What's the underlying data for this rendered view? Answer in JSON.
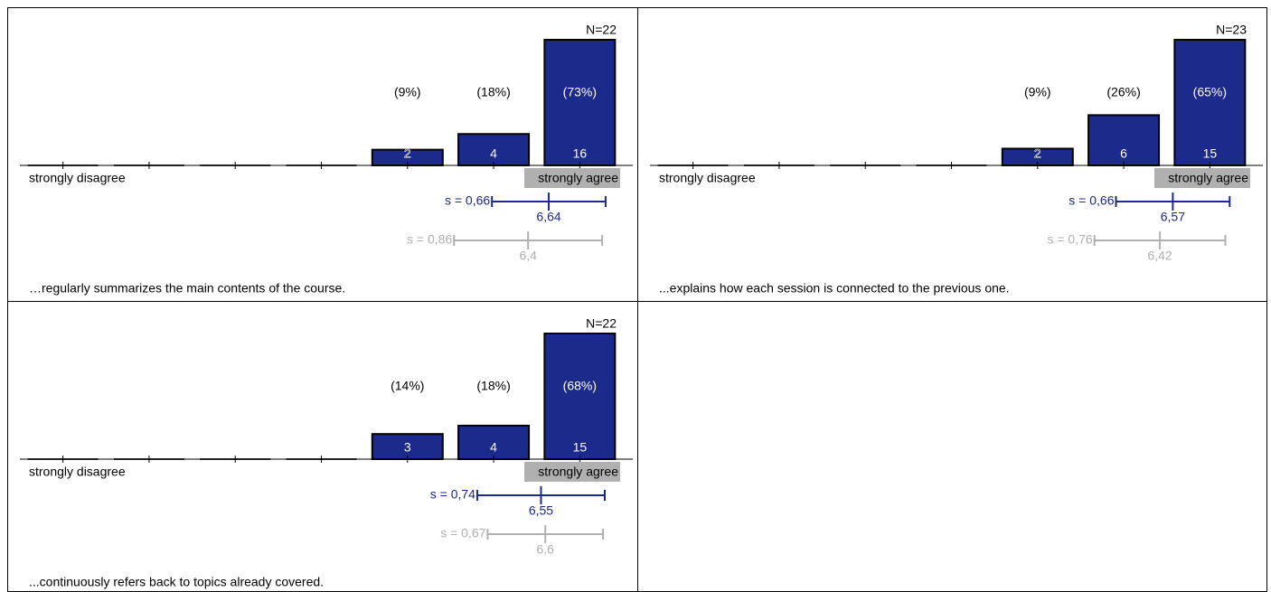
{
  "chart_data": [
    {
      "type": "bar",
      "x": [
        1,
        2,
        3,
        4,
        5,
        6,
        7
      ],
      "xlim": [
        0.5,
        7.5
      ],
      "color": "#1c2a8c",
      "values": [
        0,
        0,
        0,
        0,
        2,
        4,
        16
      ],
      "percents": [
        null,
        null,
        null,
        null,
        {
          "value": 9,
          "label": "(9%)"
        },
        {
          "value": 18,
          "label": "(18%)"
        },
        {
          "value": 73,
          "label": "(73%)"
        }
      ],
      "n": {
        "value": 22,
        "label": "N=22"
      },
      "left_label": "strongly disagree",
      "right_label": "strongly agree",
      "mean": {
        "value": 6.64,
        "label": "6,64"
      },
      "sd": {
        "value": 0.66,
        "label": "s = 0,66"
      },
      "compare_color": "#b0b0b0",
      "compare_mean": {
        "value": 6.4,
        "label": "6,4"
      },
      "compare_sd": {
        "value": 0.86,
        "label": "s = 0,86"
      },
      "caption": "…regularly summarizes the main contents of the course."
    },
    {
      "type": "bar",
      "x": [
        1,
        2,
        3,
        4,
        5,
        6,
        7
      ],
      "xlim": [
        0.5,
        7.5
      ],
      "color": "#1c2a8c",
      "values": [
        0,
        0,
        0,
        0,
        2,
        6,
        15
      ],
      "percents": [
        null,
        null,
        null,
        null,
        {
          "value": 9,
          "label": "(9%)"
        },
        {
          "value": 26,
          "label": "(26%)"
        },
        {
          "value": 65,
          "label": "(65%)"
        }
      ],
      "n": {
        "value": 23,
        "label": "N=23"
      },
      "left_label": "strongly disagree",
      "right_label": "strongly agree",
      "mean": {
        "value": 6.57,
        "label": "6,57"
      },
      "sd": {
        "value": 0.66,
        "label": "s = 0,66"
      },
      "compare_color": "#b0b0b0",
      "compare_mean": {
        "value": 6.42,
        "label": "6,42"
      },
      "compare_sd": {
        "value": 0.76,
        "label": "s = 0,76"
      },
      "caption": "...explains how each session is connected to the previous one."
    },
    {
      "type": "bar",
      "x": [
        1,
        2,
        3,
        4,
        5,
        6,
        7
      ],
      "xlim": [
        0.5,
        7.5
      ],
      "color": "#1c2a8c",
      "values": [
        0,
        0,
        0,
        0,
        3,
        4,
        15
      ],
      "percents": [
        null,
        null,
        null,
        null,
        {
          "value": 14,
          "label": "(14%)"
        },
        {
          "value": 18,
          "label": "(18%)"
        },
        {
          "value": 68,
          "label": "(68%)"
        }
      ],
      "n": {
        "value": 22,
        "label": "N=22"
      },
      "left_label": "strongly disagree",
      "right_label": "strongly agree",
      "mean": {
        "value": 6.55,
        "label": "6,55"
      },
      "sd": {
        "value": 0.74,
        "label": "s = 0,74"
      },
      "compare_color": "#b0b0b0",
      "compare_mean": {
        "value": 6.6,
        "label": "6,6"
      },
      "compare_sd": {
        "value": 0.67,
        "label": "s = 0,67"
      },
      "caption": "...continuously refers back to topics already covered."
    }
  ]
}
